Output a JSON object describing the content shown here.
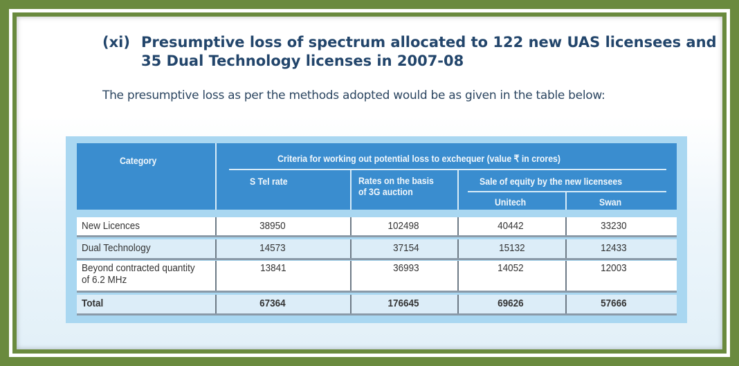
{
  "heading": {
    "number": "(xi)",
    "line1": "Presumptive loss of spectrum allocated to 122 new UAS licensees and",
    "line2": "35 Dual Technology licenses in 2007-08"
  },
  "intro": "The presumptive loss as per the methods adopted would be as given in the table below:",
  "table": {
    "category_header": "Category",
    "criteria_header": "Criteria for working out potential loss to exchequer (value ₹ in crores)",
    "stel_header": "S Tel rate",
    "rates3g_header_line1": "Rates on the basis",
    "rates3g_header_line2": "of 3G auction",
    "equity_header": "Sale of equity by the new licensees",
    "unitech_header": "Unitech",
    "swan_header": "Swan",
    "rows": [
      {
        "category": "New Licences",
        "category2": "",
        "stel": "38950",
        "rates3g": "102498",
        "unitech": "40442",
        "swan": "33230"
      },
      {
        "category": "Dual Technology",
        "category2": "",
        "stel": "14573",
        "rates3g": "37154",
        "unitech": "15132",
        "swan": "12433"
      },
      {
        "category": "Beyond contracted quantity",
        "category2": "of 6.2 MHz",
        "stel": "13841",
        "rates3g": "36993",
        "unitech": "14052",
        "swan": "12003"
      }
    ],
    "total": {
      "category": "Total",
      "stel": "67364",
      "rates3g": "176645",
      "unitech": "69626",
      "swan": "57666"
    }
  },
  "colors": {
    "frame_green": "#6a8a3e",
    "header_blue": "#3a8dcf",
    "panel_blue": "#a9d7f1",
    "heading_navy": "#22456b"
  }
}
